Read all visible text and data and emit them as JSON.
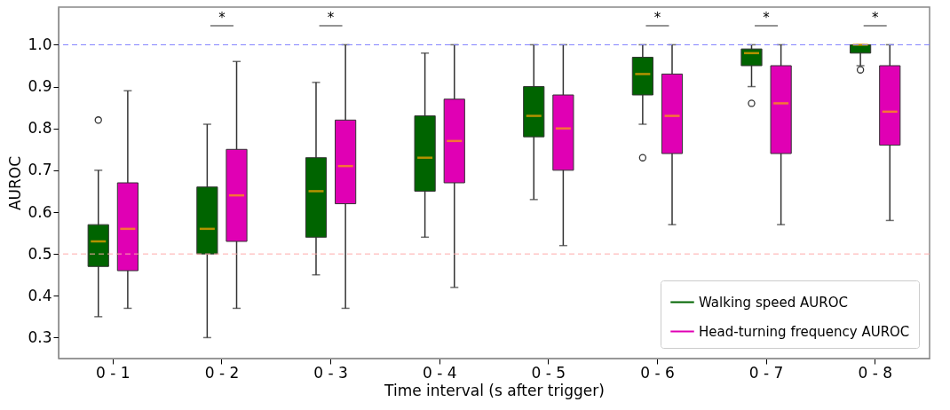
{
  "chart_data": {
    "type": "box",
    "xlabel": "Time interval (s after trigger)",
    "ylabel": "AUROC",
    "categories": [
      "0 - 1",
      "0 - 2",
      "0 - 3",
      "0 - 4",
      "0 - 5",
      "0 - 6",
      "0 - 7",
      "0 - 8"
    ],
    "ylim": [
      0.25,
      1.09
    ],
    "yticks": [
      0.3,
      0.4,
      0.5,
      0.6,
      0.7,
      0.8,
      0.9,
      {
        "value": 1.0,
        "label": "1.0"
      }
    ],
    "grid": false,
    "legend": "bottom right",
    "series": [
      {
        "name": "Walking speed AUROC",
        "color": "#006400",
        "boxes": [
          {
            "low": 0.35,
            "q1": 0.47,
            "median": 0.53,
            "q3": 0.57,
            "high": 0.7,
            "outliers": [
              0.82
            ]
          },
          {
            "low": 0.3,
            "q1": 0.5,
            "median": 0.56,
            "q3": 0.66,
            "high": 0.81
          },
          {
            "low": 0.45,
            "q1": 0.54,
            "median": 0.65,
            "q3": 0.73,
            "high": 0.91
          },
          {
            "low": 0.54,
            "q1": 0.65,
            "median": 0.73,
            "q3": 0.83,
            "high": 0.98
          },
          {
            "low": 0.63,
            "q1": 0.78,
            "median": 0.83,
            "q3": 0.9,
            "high": 1.0
          },
          {
            "low": 0.81,
            "q1": 0.88,
            "median": 0.93,
            "q3": 0.97,
            "high": 1.0,
            "outliers": [
              0.73
            ]
          },
          {
            "low": 0.9,
            "q1": 0.95,
            "median": 0.98,
            "q3": 0.99,
            "high": 1.0,
            "outliers": [
              0.86
            ]
          },
          {
            "low": 0.95,
            "q1": 0.98,
            "median": 1.0,
            "q3": 1.0,
            "high": 1.0,
            "outliers": [
              0.94
            ]
          }
        ]
      },
      {
        "name": "Head-turning frequency AUROC",
        "color": "#e000b4",
        "boxes": [
          {
            "low": 0.37,
            "q1": 0.46,
            "median": 0.56,
            "q3": 0.67,
            "high": 0.89
          },
          {
            "low": 0.37,
            "q1": 0.53,
            "median": 0.64,
            "q3": 0.75,
            "high": 0.96
          },
          {
            "low": 0.37,
            "q1": 0.62,
            "median": 0.71,
            "q3": 0.82,
            "high": 1.0
          },
          {
            "low": 0.42,
            "q1": 0.67,
            "median": 0.77,
            "q3": 0.87,
            "high": 1.0
          },
          {
            "low": 0.52,
            "q1": 0.7,
            "median": 0.8,
            "q3": 0.88,
            "high": 1.0
          },
          {
            "low": 0.57,
            "q1": 0.74,
            "median": 0.83,
            "q3": 0.93,
            "high": 1.0
          },
          {
            "low": 0.57,
            "q1": 0.74,
            "median": 0.86,
            "q3": 0.95,
            "high": 1.0
          },
          {
            "low": 0.58,
            "q1": 0.76,
            "median": 0.84,
            "q3": 0.95,
            "high": 1.0
          }
        ]
      }
    ],
    "ref_lines": [
      {
        "axis": "y",
        "value": 1.0,
        "color": "#8080ff",
        "line_style": "dashed"
      },
      {
        "axis": "y",
        "value": 0.5,
        "color": "#ffaaaa",
        "line_style": "dashed"
      }
    ],
    "annotations": [
      "*",
      "*",
      "*",
      "*",
      "*"
    ]
  }
}
